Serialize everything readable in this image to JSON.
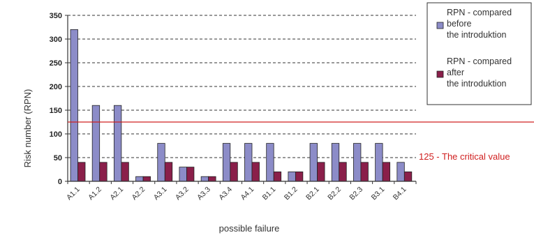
{
  "chart_data": {
    "type": "bar",
    "xlabel": "possible failure",
    "ylabel": "Risk number (RPN)",
    "ylim": [
      0,
      350
    ],
    "yticks": [
      0,
      50,
      100,
      150,
      200,
      250,
      300,
      350
    ],
    "grid": "horizontal-dashed",
    "legend_position": "top-right",
    "categories": [
      "A1.1",
      "A1.2",
      "A2.1",
      "A2.2",
      "A3.1",
      "A3.2",
      "A3.3",
      "A3.4",
      "A4.1",
      "B1.1",
      "B1.2",
      "B2.1",
      "B2.2",
      "B2.3",
      "B3.1",
      "B4.1"
    ],
    "series": [
      {
        "name": "RPN - compared before the introduktion",
        "name_lines": [
          "RPN - compared",
          "before",
          "the introduktion"
        ],
        "color": "#8c8cc8",
        "values": [
          320,
          160,
          160,
          10,
          80,
          30,
          10,
          80,
          80,
          80,
          20,
          80,
          80,
          80,
          80,
          40
        ]
      },
      {
        "name": "RPN - compared after the introduktion",
        "name_lines": [
          "RPN - compared",
          "after",
          "the introduktion"
        ],
        "color": "#8a1f4a",
        "values": [
          40,
          40,
          40,
          10,
          40,
          30,
          10,
          40,
          40,
          20,
          20,
          40,
          40,
          40,
          40,
          20
        ]
      }
    ],
    "reference_line": {
      "value": 125,
      "label": "125 - The critical value",
      "color": "#d02020"
    }
  }
}
